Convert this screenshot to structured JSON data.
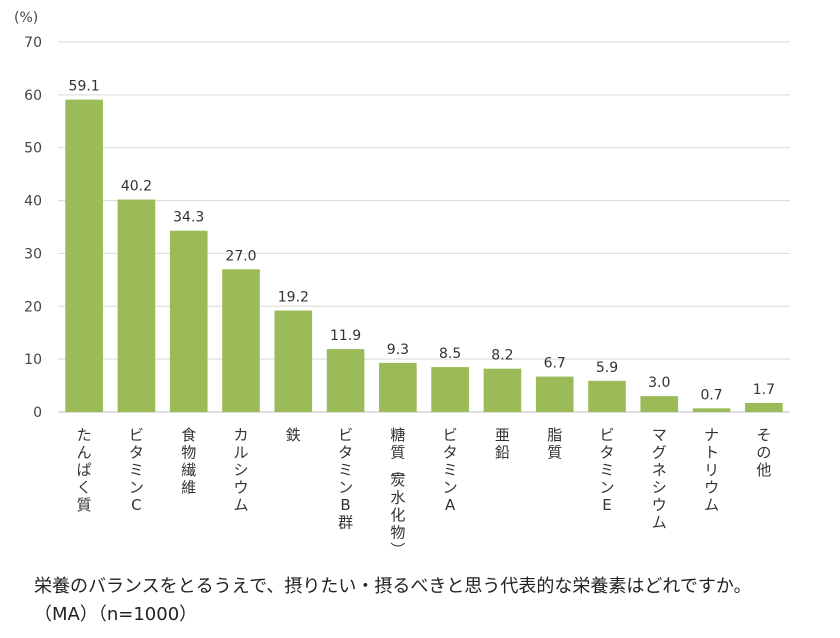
{
  "chart_data": {
    "type": "bar",
    "unit_label": "(%)",
    "ylim": [
      0,
      70
    ],
    "yticks": [
      0,
      10,
      20,
      30,
      40,
      50,
      60,
      70
    ],
    "grid": true,
    "bar_color": "#9bbb59",
    "categories": [
      "たんぱく質",
      "ビタミンC",
      "食物繊維",
      "カルシウム",
      "鉄",
      "ビタミンB群",
      "糖質（炭水化物）",
      "ビタミンA",
      "亜鉛",
      "脂質",
      "ビタミンE",
      "マグネシウム",
      "ナトリウム",
      "その他"
    ],
    "values": [
      59.1,
      40.2,
      34.3,
      27.0,
      19.2,
      11.9,
      9.3,
      8.5,
      8.2,
      6.7,
      5.9,
      3.0,
      0.7,
      1.7
    ],
    "value_labels": [
      "59.1",
      "40.2",
      "34.3",
      "27.0",
      "19.2",
      "11.9",
      "9.3",
      "8.5",
      "8.2",
      "6.7",
      "5.9",
      "3.0",
      "0.7",
      "1.7"
    ]
  },
  "caption": {
    "line1": "栄養のバランスをとるうえで、摂りたい・摂るべきと思う代表的な栄養素はどれですか。",
    "line2": "（MA）（n=1000）"
  }
}
